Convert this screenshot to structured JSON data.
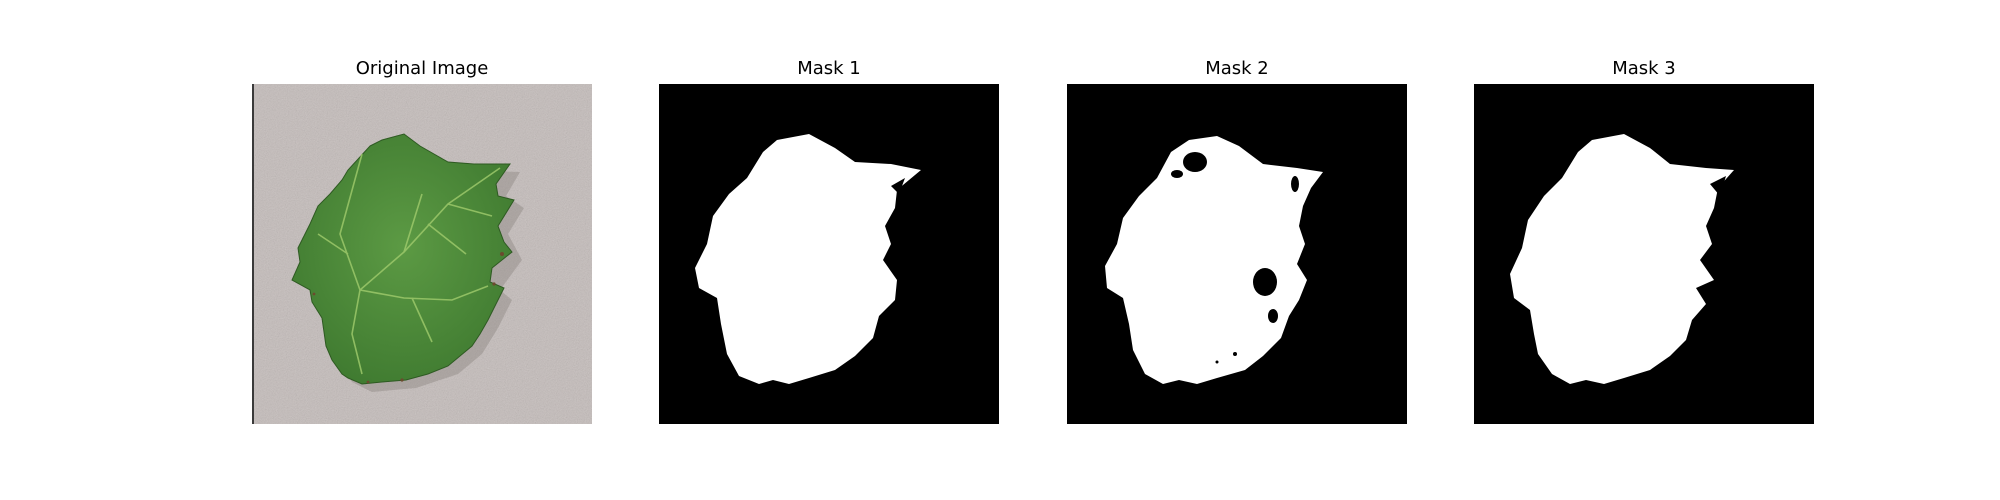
{
  "figure": {
    "panels": [
      {
        "title": "Original Image",
        "kind": "photo"
      },
      {
        "title": "Mask 1",
        "kind": "mask"
      },
      {
        "title": "Mask 2",
        "kind": "mask"
      },
      {
        "title": "Mask 3",
        "kind": "mask"
      }
    ]
  },
  "colors": {
    "background": "#c4bcba",
    "leaf": "#4f8f3b",
    "leaf_dark": "#3a6f2c",
    "vein": "#8fbf5a",
    "mask_bg": "#000000",
    "mask_fg": "#ffffff"
  }
}
